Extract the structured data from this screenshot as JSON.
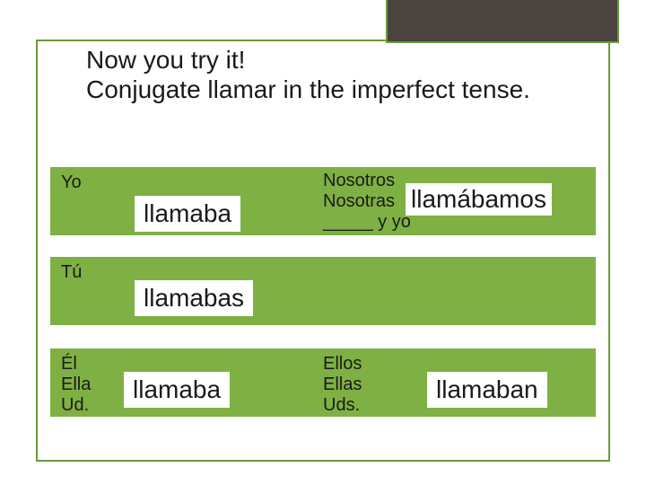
{
  "title_line1": "Now you try it!",
  "title_line2": "Conjugate llamar in the imperfect tense.",
  "colors": {
    "band": "#7fb043",
    "frame": "#6a9a3a",
    "corner": "#4a4340",
    "text": "#1a1a1a",
    "bg": "#ffffff"
  },
  "rows": {
    "r1": {
      "left_pronoun": "Yo",
      "left_answer": "llamaba",
      "right_pronoun_l1": "Nosotros",
      "right_pronoun_l2": "Nosotras",
      "right_pronoun_l3": "_____ y yo",
      "right_answer": "llamábamos"
    },
    "r2": {
      "left_pronoun": "Tú",
      "left_answer": "llamabas"
    },
    "r3": {
      "left_pronoun_l1": "Él",
      "left_pronoun_l2": "Ella",
      "left_pronoun_l3": "Ud.",
      "left_answer": "llamaba",
      "right_pronoun_l1": "Ellos",
      "right_pronoun_l2": "Ellas",
      "right_pronoun_l3": "Uds.",
      "right_answer": "llamaban"
    }
  }
}
